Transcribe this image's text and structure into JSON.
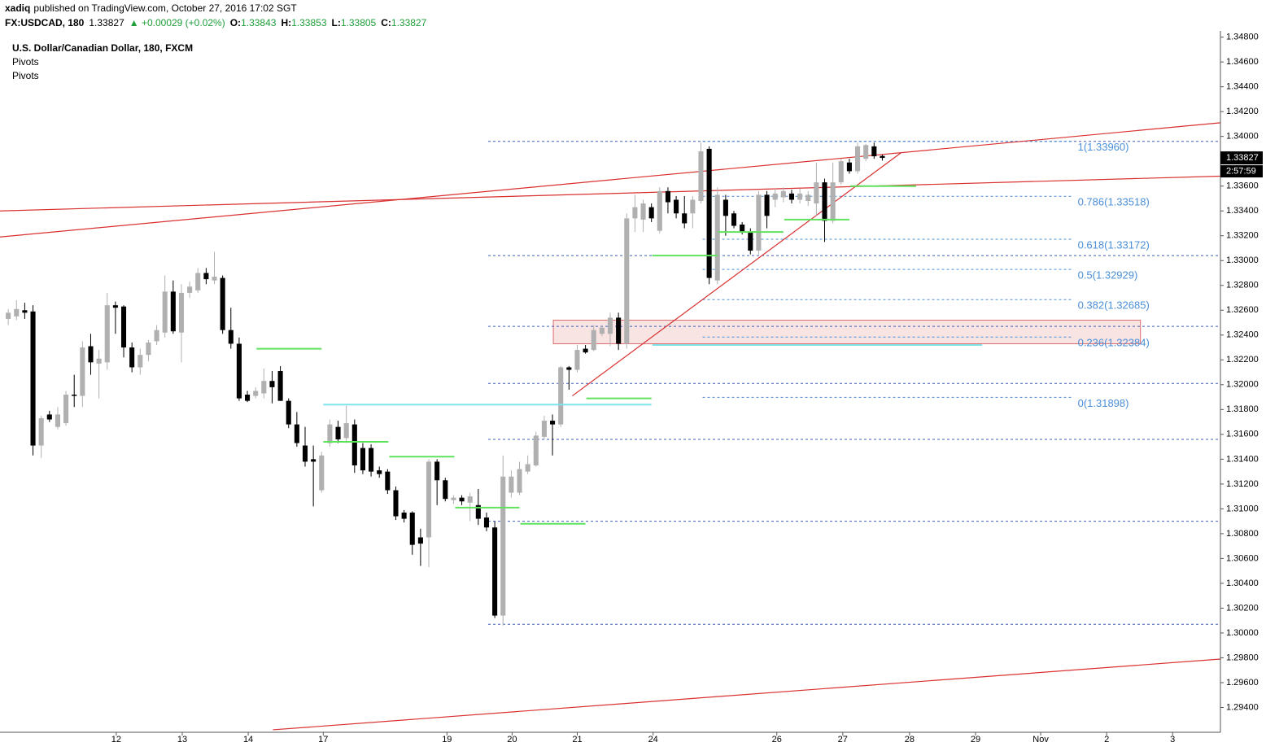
{
  "chart_data": {
    "type": "candlestick",
    "header": {
      "publisher": "xadiq",
      "published": "published on TradingView.com, October 27, 2016 17:02 SGT",
      "symbol": "FX:USDCAD, 180",
      "last": 1.33827,
      "change": "▲ +0.00029 (+0.02%)",
      "ohlc": [
        {
          "label": "O:",
          "value": 1.33843
        },
        {
          "label": "H:",
          "value": 1.33853
        },
        {
          "label": "L:",
          "value": 1.33805
        },
        {
          "label": "C:",
          "value": 1.33827
        }
      ]
    },
    "title": "U.S. Dollar/Canadian Dollar, 180, FXCM",
    "indicators": [
      "Pivots",
      "Pivots"
    ],
    "price_label": 1.33827,
    "countdown": "2:57:59",
    "up_color": "#b0b0b0",
    "down_color": "#000000",
    "xlim": [
      -1,
      147
    ],
    "ylim": [
      1.292,
      1.3485
    ],
    "xticks": [
      {
        "value": 13.1,
        "label": "12"
      },
      {
        "value": 21.1,
        "label": "13"
      },
      {
        "value": 29.1,
        "label": "14"
      },
      {
        "value": 38.2,
        "label": "17"
      },
      {
        "value": 53.2,
        "label": "19"
      },
      {
        "value": 61.1,
        "label": "20"
      },
      {
        "value": 69.0,
        "label": "21"
      },
      {
        "value": 78.2,
        "label": "24"
      },
      {
        "value": 93.2,
        "label": "26"
      },
      {
        "value": 101.2,
        "label": "27"
      },
      {
        "value": 109.3,
        "label": "28"
      },
      {
        "value": 117.3,
        "label": "29"
      },
      {
        "value": 125.2,
        "label": "Nov"
      },
      {
        "value": 133.2,
        "label": "2"
      },
      {
        "value": 141.2,
        "label": "3"
      }
    ],
    "yticks": [
      {
        "value": 1.294,
        "label": "1.29400"
      },
      {
        "value": 1.296,
        "label": "1.29600"
      },
      {
        "value": 1.298,
        "label": "1.29800"
      },
      {
        "value": 1.3,
        "label": "1.30000"
      },
      {
        "value": 1.302,
        "label": "1.30200"
      },
      {
        "value": 1.304,
        "label": "1.30400"
      },
      {
        "value": 1.306,
        "label": "1.30600"
      },
      {
        "value": 1.308,
        "label": "1.30800"
      },
      {
        "value": 1.31,
        "label": "1.31000"
      },
      {
        "value": 1.312,
        "label": "1.31200"
      },
      {
        "value": 1.314,
        "label": "1.31400"
      },
      {
        "value": 1.316,
        "label": "1.31600"
      },
      {
        "value": 1.318,
        "label": "1.31800"
      },
      {
        "value": 1.32,
        "label": "1.32000"
      },
      {
        "value": 1.322,
        "label": "1.32200"
      },
      {
        "value": 1.324,
        "label": "1.32400"
      },
      {
        "value": 1.326,
        "label": "1.32600"
      },
      {
        "value": 1.328,
        "label": "1.32800"
      },
      {
        "value": 1.33,
        "label": "1.33000"
      },
      {
        "value": 1.332,
        "label": "1.33200"
      },
      {
        "value": 1.334,
        "label": "1.33400"
      },
      {
        "value": 1.336,
        "label": "1.33600"
      },
      {
        "value": 1.338,
        "label": "1.33800"
      },
      {
        "value": 1.34,
        "label": "1.34000"
      },
      {
        "value": 1.342,
        "label": "1.34200"
      },
      {
        "value": 1.344,
        "label": "1.34400"
      },
      {
        "value": 1.346,
        "label": "1.34600"
      },
      {
        "value": 1.348,
        "label": "1.34800"
      }
    ],
    "x": [
      0,
      1,
      2,
      3,
      4,
      5,
      6,
      7,
      8,
      9,
      10,
      11,
      12,
      13,
      14,
      15,
      16,
      17,
      18,
      19,
      20,
      21,
      22,
      23,
      24,
      25,
      26,
      27,
      28,
      29,
      30,
      31,
      32,
      33,
      34,
      35,
      36,
      37,
      38,
      39,
      40,
      41,
      42,
      43,
      44,
      45,
      46,
      47,
      48,
      49,
      50,
      51,
      52,
      53,
      54,
      55,
      56,
      57,
      58,
      59,
      60,
      61,
      62,
      63,
      64,
      65,
      66,
      67,
      68,
      69,
      70,
      71,
      72,
      73,
      74,
      75,
      76,
      77,
      78,
      79,
      80,
      81,
      82,
      83,
      84,
      85,
      86,
      87,
      88,
      89,
      90,
      91,
      92,
      93,
      94,
      95,
      96,
      97,
      98,
      99,
      100,
      101,
      102,
      103,
      104,
      105,
      106
    ],
    "open": [
      1.3253,
      1.3255,
      1.326,
      1.3259,
      1.3151,
      1.3176,
      1.3166,
      1.3169,
      1.3192,
      1.3191,
      1.3231,
      1.3217,
      1.3218,
      1.3264,
      1.3263,
      1.323,
      1.3214,
      1.3224,
      1.3235,
      1.3242,
      1.3275,
      1.3242,
      1.3274,
      1.3276,
      1.329,
      1.3284,
      1.3286,
      1.3244,
      1.3233,
      1.3192,
      1.3191,
      1.3193,
      1.3203,
      1.3211,
      1.3187,
      1.3168,
      1.3151,
      1.314,
      1.3115,
      1.3153,
      1.3166,
      1.3157,
      1.3168,
      1.3149,
      1.3149,
      1.3131,
      1.313,
      1.3115,
      1.3097,
      1.3097,
      1.3077,
      1.3077,
      1.3138,
      1.3123,
      1.3107,
      1.3109,
      1.3105,
      1.3103,
      1.3093,
      1.3085,
      1.3014,
      1.3113,
      1.3113,
      1.313,
      1.3135,
      1.3158,
      1.3171,
      1.3168,
      1.3214,
      1.3212,
      1.3229,
      1.3228,
      1.3241,
      1.3241,
      1.3254,
      1.3233,
      1.3334,
      1.3333,
      1.3343,
      1.3324,
      1.3356,
      1.3349,
      1.3338,
      1.3338,
      1.3348,
      1.339,
      1.3284,
      1.3349,
      1.3338,
      1.3329,
      1.3323,
      1.3308,
      1.3353,
      1.3349,
      1.3351,
      1.3354,
      1.3349,
      1.3348,
      1.3346,
      1.3363,
      1.3332,
      1.3363,
      1.3379,
      1.3372,
      1.3382,
      1.3392,
      1.33843
    ],
    "high": [
      1.3261,
      1.3268,
      1.3266,
      1.3264,
      1.3175,
      1.3179,
      1.3182,
      1.3195,
      1.3208,
      1.3235,
      1.3241,
      1.3228,
      1.3274,
      1.3267,
      1.3264,
      1.3234,
      1.3229,
      1.3236,
      1.3248,
      1.3288,
      1.3284,
      1.3281,
      1.3283,
      1.3294,
      1.3294,
      1.3307,
      1.3288,
      1.3262,
      1.3238,
      1.3195,
      1.3198,
      1.3213,
      1.3211,
      1.3215,
      1.3189,
      1.3178,
      1.3166,
      1.3151,
      1.3146,
      1.3172,
      1.3171,
      1.3183,
      1.3172,
      1.3153,
      1.3152,
      1.3134,
      1.3132,
      1.3118,
      1.3099,
      1.3098,
      1.3084,
      1.314,
      1.314,
      1.3125,
      1.3111,
      1.3111,
      1.3113,
      1.3116,
      1.3097,
      1.309,
      1.3143,
      1.3131,
      1.3138,
      1.3143,
      1.3162,
      1.3175,
      1.3176,
      1.3215,
      1.3215,
      1.3232,
      1.3232,
      1.3248,
      1.3248,
      1.3258,
      1.3258,
      1.3338,
      1.3353,
      1.3349,
      1.3346,
      1.3359,
      1.3359,
      1.3352,
      1.3352,
      1.3352,
      1.3395,
      1.3392,
      1.3359,
      1.3353,
      1.334,
      1.3331,
      1.3326,
      1.3356,
      1.3356,
      1.3358,
      1.3359,
      1.3357,
      1.3358,
      1.3356,
      1.3379,
      1.3366,
      1.3379,
      1.3382,
      1.3382,
      1.3395,
      1.3394,
      1.3395,
      1.33853
    ],
    "low": [
      1.3248,
      1.3252,
      1.3253,
      1.3143,
      1.3141,
      1.317,
      1.3164,
      1.3167,
      1.3182,
      1.3182,
      1.3208,
      1.3189,
      1.3212,
      1.3241,
      1.3222,
      1.321,
      1.3208,
      1.3219,
      1.3232,
      1.3238,
      1.3241,
      1.3218,
      1.327,
      1.3274,
      1.3281,
      1.3281,
      1.3241,
      1.3229,
      1.3187,
      1.3186,
      1.3189,
      1.3189,
      1.3185,
      1.3187,
      1.3165,
      1.315,
      1.3134,
      1.3102,
      1.3113,
      1.315,
      1.3153,
      1.3153,
      1.3129,
      1.3128,
      1.3126,
      1.3125,
      1.3112,
      1.3091,
      1.3089,
      1.3063,
      1.3054,
      1.3053,
      1.3103,
      1.3106,
      1.3104,
      1.3103,
      1.309,
      1.3087,
      1.3082,
      1.3012,
      1.3006,
      1.3109,
      1.3111,
      1.3128,
      1.3134,
      1.3156,
      1.3143,
      1.3166,
      1.3196,
      1.321,
      1.3225,
      1.3227,
      1.3239,
      1.3231,
      1.3228,
      1.3229,
      1.3323,
      1.3323,
      1.3331,
      1.3322,
      1.3338,
      1.3334,
      1.3326,
      1.3326,
      1.3346,
      1.3281,
      1.3281,
      1.332,
      1.3326,
      1.3321,
      1.3305,
      1.3305,
      1.3326,
      1.3343,
      1.3347,
      1.3346,
      1.3346,
      1.3344,
      1.3336,
      1.3315,
      1.333,
      1.3361,
      1.337,
      1.337,
      1.338,
      1.3382,
      1.33805
    ],
    "close": [
      1.3258,
      1.3261,
      1.3258,
      1.3151,
      1.3173,
      1.3172,
      1.3176,
      1.3192,
      1.3191,
      1.323,
      1.3218,
      1.3221,
      1.3264,
      1.3262,
      1.323,
      1.3214,
      1.3224,
      1.3234,
      1.3244,
      1.3275,
      1.3243,
      1.3274,
      1.3279,
      1.329,
      1.3285,
      1.3287,
      1.3244,
      1.3233,
      1.3189,
      1.3187,
      1.3195,
      1.3203,
      1.3198,
      1.3187,
      1.3168,
      1.3153,
      1.3138,
      1.3138,
      1.3143,
      1.3168,
      1.3156,
      1.3169,
      1.3135,
      1.3131,
      1.313,
      1.3128,
      1.3115,
      1.3094,
      1.3092,
      1.3071,
      1.3072,
      1.3138,
      1.3123,
      1.3108,
      1.3109,
      1.3106,
      1.311,
      1.3092,
      1.3085,
      1.3014,
      1.3126,
      1.3126,
      1.3132,
      1.3136,
      1.3159,
      1.3171,
      1.3168,
      1.3214,
      1.3212,
      1.3228,
      1.3226,
      1.3244,
      1.3246,
      1.3254,
      1.3233,
      1.3334,
      1.3343,
      1.3346,
      1.3334,
      1.3356,
      1.3347,
      1.3338,
      1.333,
      1.3349,
      1.3388,
      1.3286,
      1.3353,
      1.3336,
      1.3328,
      1.3323,
      1.3308,
      1.3353,
      1.3336,
      1.3354,
      1.3356,
      1.3349,
      1.3354,
      1.3353,
      1.3363,
      1.3332,
      1.3363,
      1.338,
      1.3372,
      1.3392,
      1.3393,
      1.3384,
      1.33827
    ],
    "pivot_levels": {
      "color": "#3f5fb8",
      "x_start": 58.2,
      "values": [
        1.3396,
        1.3304,
        1.3247,
        1.3201,
        1.3156,
        1.309,
        1.3007
      ]
    },
    "fib": {
      "color": "#4a8fd8",
      "x_range": [
        84.2,
        129.2
      ],
      "levels": [
        {
          "value": 1.3396,
          "label": "1(1.33960)"
        },
        {
          "value": 1.33518,
          "label": "0.786(1.33518)"
        },
        {
          "value": 1.33172,
          "label": "0.618(1.33172)"
        },
        {
          "value": 1.32929,
          "label": "0.5(1.32929)"
        },
        {
          "value": 1.32685,
          "label": "0.382(1.32685)"
        },
        {
          "value": 1.32384,
          "label": "0.236(1.32384)"
        },
        {
          "value": 1.31898,
          "label": "0(1.31898)"
        }
      ]
    },
    "pivot_segments": [
      {
        "color": "#5fe35f",
        "x": [
          30.1,
          38.0
        ],
        "value": 1.3229
      },
      {
        "color": "#5fe35f",
        "x": [
          38.2,
          46.1
        ],
        "value": 1.3154
      },
      {
        "color": "#5fe35f",
        "x": [
          46.2,
          54.1
        ],
        "value": 1.3142
      },
      {
        "color": "#5fe35f",
        "x": [
          54.2,
          62.0
        ],
        "value": 1.3101
      },
      {
        "color": "#5fe35f",
        "x": [
          62.1,
          70.0
        ],
        "value": 1.3088
      },
      {
        "color": "#5fe35f",
        "x": [
          70.1,
          78.0
        ],
        "value": 1.3189
      },
      {
        "color": "#5fe35f",
        "x": [
          78.1,
          86.0
        ],
        "value": 1.3304
      },
      {
        "color": "#5fe35f",
        "x": [
          86.1,
          94.0
        ],
        "value": 1.3323
      },
      {
        "color": "#5fe35f",
        "x": [
          94.1,
          102.0
        ],
        "value": 1.3333
      },
      {
        "color": "#5fe35f",
        "x": [
          102.1,
          110.1
        ],
        "value": 1.336
      },
      {
        "color": "#7ee3ea",
        "x": [
          38.2,
          78.0
        ],
        "value": 1.3184
      },
      {
        "color": "#7ee3ea",
        "x": [
          78.1,
          118.1
        ],
        "value": 1.3232
      }
    ],
    "trend_lines": [
      {
        "color": "#d93030",
        "x": [
          -1,
          147
        ],
        "y": [
          1.3319,
          1.3411
        ]
      },
      {
        "color": "#d93030",
        "x": [
          -1,
          147
        ],
        "y": [
          1.334,
          1.3368
        ]
      },
      {
        "color": "#d93030",
        "x": [
          68.4,
          108.3
        ],
        "y": [
          1.3191,
          1.3387
        ]
      },
      {
        "color": "#d93030",
        "x": [
          32.1,
          147
        ],
        "y": [
          1.2922,
          1.2979
        ]
      }
    ],
    "zone": {
      "color": "#e06a6a",
      "x": [
        66.1,
        137.3
      ],
      "y": [
        1.3233,
        1.3252
      ]
    }
  }
}
